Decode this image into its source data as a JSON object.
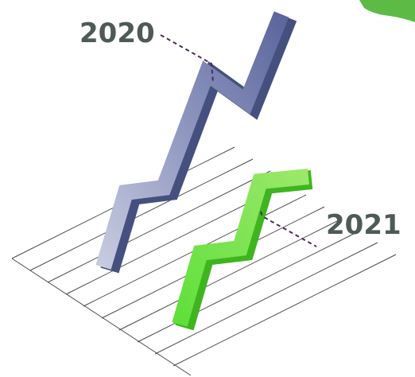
{
  "labels": {
    "first_year": "2020",
    "second_year": "2021"
  }
}
